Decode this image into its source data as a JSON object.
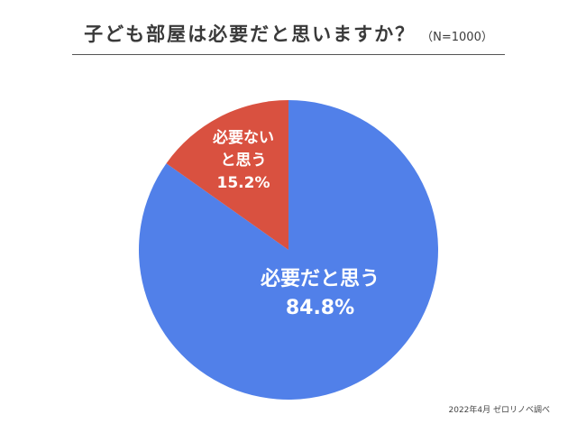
{
  "title": "子ども部屋は必要だと思いますか？",
  "sample": "（N=1000）",
  "source": "2022年4月 ゼロリノベ調べ",
  "colors": {
    "text": "#3a3a3a",
    "rule": "#555555",
    "label": "#ffffff"
  },
  "chart_data": {
    "type": "pie",
    "title": "子ども部屋は必要だと思いますか？",
    "slices": [
      {
        "label_lines": [
          "必要だと思う"
        ],
        "value_label": "84.8%",
        "value": 84.8,
        "color": "#5180e9"
      },
      {
        "label_lines": [
          "必要ない",
          "と思う"
        ],
        "value_label": "15.2%",
        "value": 15.2,
        "color": "#d95140"
      }
    ],
    "start": "12 o'clock",
    "direction": "clockwise"
  }
}
